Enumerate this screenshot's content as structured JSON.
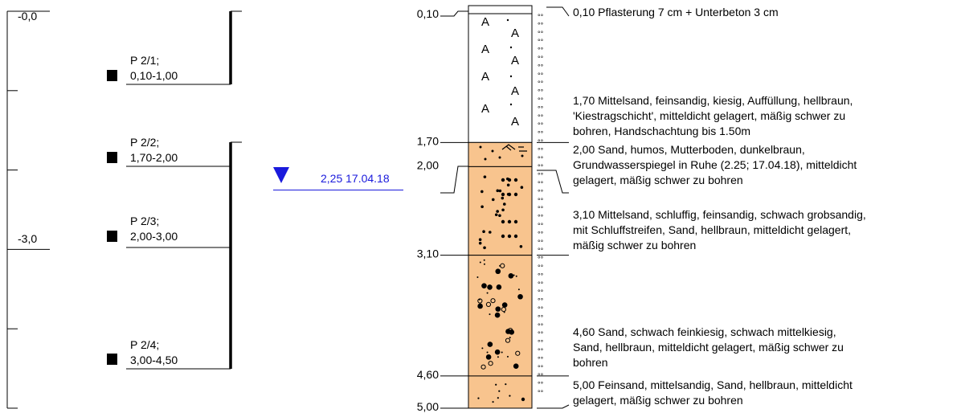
{
  "depth_scale": {
    "labels": [
      {
        "text": "-0,0",
        "depth": 0.0
      },
      {
        "text": "-3,0",
        "depth": 3.0
      }
    ],
    "tick_depths": [
      0.0,
      1.0,
      2.0,
      3.0,
      4.0,
      5.0
    ]
  },
  "samples": [
    {
      "id": "P 2/1;",
      "range": "0,10-1,00",
      "bottom": 1.0
    },
    {
      "id": "P 2/2;",
      "range": "1,70-2,00",
      "bottom": 2.0
    },
    {
      "id": "P 2/3;",
      "range": "2,00-3,00",
      "bottom": 3.0
    },
    {
      "id": "P 2/4;",
      "range": "3,00-4,50",
      "bottom": 4.5
    }
  ],
  "groundwater": {
    "label": "2,25 17.04.18",
    "depth": 2.25,
    "color": "#1a1adc"
  },
  "layers": [
    {
      "from": 0.0,
      "to": 0.1,
      "depth_label": "0,10",
      "pattern": "blank",
      "fill": "#ffffff",
      "description": [
        "0,10  Pflasterung 7 cm + Unterbeton 3 cm"
      ]
    },
    {
      "from": 0.1,
      "to": 1.7,
      "depth_label": "1,70",
      "pattern": "fill_A",
      "fill": "#ffffff",
      "description": [
        "1,70  Mittelsand, feinsandig, kiesig, Auffüllung, hellbraun,",
        "'Kiestragschicht', mitteldicht gelagert, mäßig schwer zu",
        "bohren, Handschachtung bis 1.50m"
      ]
    },
    {
      "from": 1.7,
      "to": 2.0,
      "depth_label": "2,00",
      "pattern": "humus",
      "fill": "#f8c48e",
      "description": [
        "2,00  Sand, humos, Mutterboden, dunkelbraun,",
        "Grundwasserspiegel in Ruhe (2.25; 17.04.18), mitteldicht",
        "gelagert, mäßig schwer zu bohren"
      ]
    },
    {
      "from": 2.0,
      "to": 3.1,
      "depth_label": "3,10",
      "pattern": "silty_sand",
      "fill": "#f8c48e",
      "description": [
        "3,10  Mittelsand, schluffig, feinsandig, schwach grobsandig,",
        "mit Schluffstreifen, Sand, hellbraun, mitteldicht gelagert,",
        "mäßig schwer zu bohren"
      ]
    },
    {
      "from": 3.1,
      "to": 4.6,
      "depth_label": "4,60",
      "pattern": "gravelly_sand",
      "fill": "#f8c48e",
      "description": [
        "4,60  Sand, schwach feinkiesig, schwach mittelkiesig,",
        "Sand, hellbraun, mitteldicht gelagert, mäßig schwer zu",
        "bohren"
      ]
    },
    {
      "from": 4.6,
      "to": 5.0,
      "depth_label": "5,00",
      "pattern": "fine_sand",
      "fill": "#f8c48e",
      "description": [
        "5,00  Feinsand, mittelsandig, Sand, hellbraun, mitteldicht",
        "gelagert, mäßig schwer zu bohren"
      ]
    }
  ],
  "moisture_symbol": "°°"
}
